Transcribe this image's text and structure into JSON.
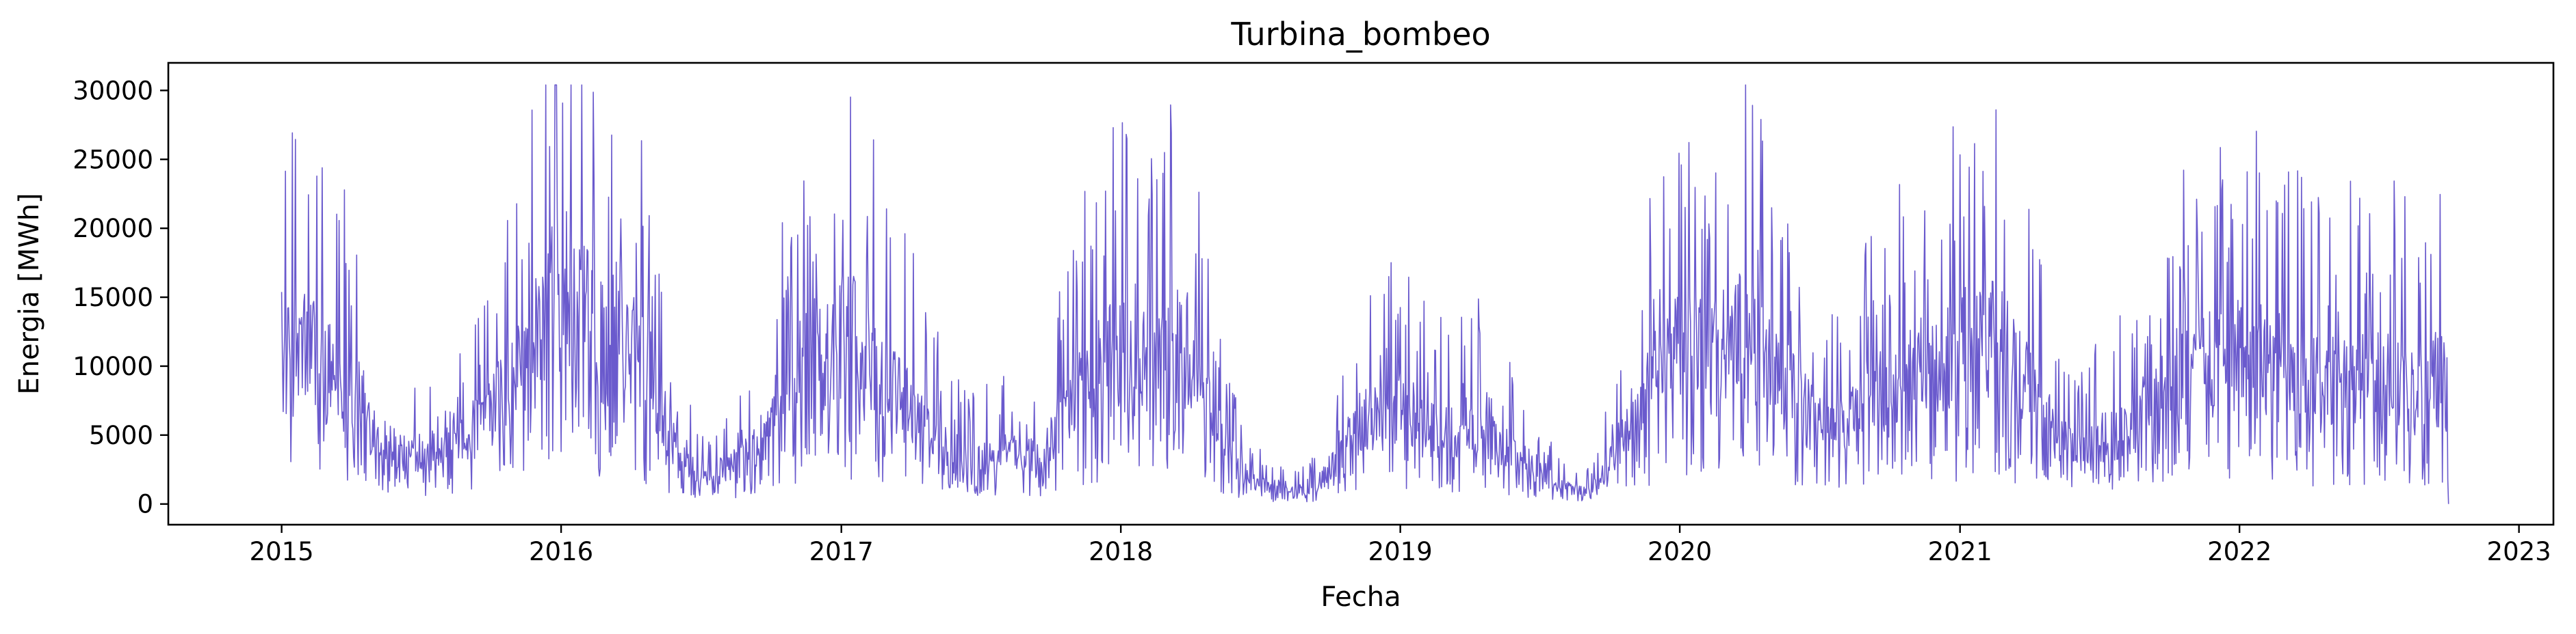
{
  "chart_data": {
    "type": "line",
    "title": "Turbina_bombeo",
    "xlabel": "Fecha",
    "ylabel": "Energia [MWh]",
    "xlim": [
      "2014-08-06",
      "2023-02-15"
    ],
    "ylim": [
      -1500,
      32000
    ],
    "x_ticks": [
      "2015",
      "2016",
      "2017",
      "2018",
      "2019",
      "2020",
      "2021",
      "2022",
      "2023"
    ],
    "y_ticks": [
      0,
      5000,
      10000,
      15000,
      20000,
      25000,
      30000
    ],
    "y_tick_labels": [
      "0",
      "5000",
      "10000",
      "15000",
      "20000",
      "25000",
      "30000"
    ],
    "grid": false,
    "line_color": "#6a5acd",
    "series": [
      {
        "interval": "approx. 15-day level of the daily series (start date, MWh)",
        "x": [
          "2015-01-01",
          "2015-01-16",
          "2015-02-01",
          "2015-02-16",
          "2015-03-01",
          "2015-03-16",
          "2015-04-01",
          "2015-04-16",
          "2015-05-01",
          "2015-05-16",
          "2015-06-01",
          "2015-06-16",
          "2015-07-01",
          "2015-07-16",
          "2015-08-01",
          "2015-08-16",
          "2015-09-01",
          "2015-09-16",
          "2015-10-01",
          "2015-10-16",
          "2015-11-01",
          "2015-11-16",
          "2015-12-01",
          "2015-12-16",
          "2016-01-01",
          "2016-01-16",
          "2016-02-01",
          "2016-02-16",
          "2016-03-01",
          "2016-03-16",
          "2016-04-01",
          "2016-04-16",
          "2016-05-01",
          "2016-05-16",
          "2016-06-01",
          "2016-06-16",
          "2016-07-01",
          "2016-07-16",
          "2016-08-01",
          "2016-08-16",
          "2016-09-01",
          "2016-09-16",
          "2016-10-01",
          "2016-10-16",
          "2016-11-01",
          "2016-11-16",
          "2016-12-01",
          "2016-12-16",
          "2017-01-01",
          "2017-01-16",
          "2017-02-01",
          "2017-02-16",
          "2017-03-01",
          "2017-03-16",
          "2017-04-01",
          "2017-04-16",
          "2017-05-01",
          "2017-05-16",
          "2017-06-01",
          "2017-06-16",
          "2017-07-01",
          "2017-07-16",
          "2017-08-01",
          "2017-08-16",
          "2017-09-01",
          "2017-09-16",
          "2017-10-01",
          "2017-10-16",
          "2017-11-01",
          "2017-11-16",
          "2017-12-01",
          "2017-12-16",
          "2018-01-01",
          "2018-01-16",
          "2018-02-01",
          "2018-02-16",
          "2018-03-01",
          "2018-03-16",
          "2018-04-01",
          "2018-04-16",
          "2018-05-01",
          "2018-05-16",
          "2018-06-01",
          "2018-06-16",
          "2018-07-01",
          "2018-07-16",
          "2018-08-01",
          "2018-08-16",
          "2018-09-01",
          "2018-09-16",
          "2018-10-01",
          "2018-10-16",
          "2018-11-01",
          "2018-11-16",
          "2018-12-01",
          "2018-12-16",
          "2019-01-01",
          "2019-01-16",
          "2019-02-01",
          "2019-02-16",
          "2019-03-01",
          "2019-03-16",
          "2019-04-01",
          "2019-04-16",
          "2019-05-01",
          "2019-05-16",
          "2019-06-01",
          "2019-06-16",
          "2019-07-01",
          "2019-07-16",
          "2019-08-01",
          "2019-08-16",
          "2019-09-01",
          "2019-09-16",
          "2019-10-01",
          "2019-10-16",
          "2019-11-01",
          "2019-11-16",
          "2019-12-01",
          "2019-12-16",
          "2020-01-01",
          "2020-01-16",
          "2020-02-01",
          "2020-02-16",
          "2020-03-01",
          "2020-03-16",
          "2020-04-01",
          "2020-04-16",
          "2020-05-01",
          "2020-05-16",
          "2020-06-01",
          "2020-06-16",
          "2020-07-01",
          "2020-07-16",
          "2020-08-01",
          "2020-08-16",
          "2020-09-01",
          "2020-09-16",
          "2020-10-01",
          "2020-10-16",
          "2020-11-01",
          "2020-11-16",
          "2020-12-01",
          "2020-12-16",
          "2021-01-01",
          "2021-01-16",
          "2021-02-01",
          "2021-02-16",
          "2021-03-01",
          "2021-03-16",
          "2021-04-01",
          "2021-04-16",
          "2021-05-01",
          "2021-05-16",
          "2021-06-01",
          "2021-06-16",
          "2021-07-01",
          "2021-07-16",
          "2021-08-01",
          "2021-08-16",
          "2021-09-01",
          "2021-09-16",
          "2021-10-01",
          "2021-10-16",
          "2021-11-01",
          "2021-11-16",
          "2021-12-01",
          "2021-12-16",
          "2022-01-01",
          "2022-01-16",
          "2022-02-01",
          "2022-02-16",
          "2022-03-01",
          "2022-03-16",
          "2022-04-01",
          "2022-04-16",
          "2022-05-01",
          "2022-05-16",
          "2022-06-01",
          "2022-06-16",
          "2022-07-01",
          "2022-07-16",
          "2022-08-01",
          "2022-08-16",
          "2022-09-01",
          "2022-09-16",
          "2022-10-01"
        ],
        "values": [
          9500,
          10500,
          11000,
          10500,
          9500,
          9000,
          8500,
          7000,
          5500,
          4500,
          4000,
          3500,
          4000,
          4000,
          5000,
          4500,
          5000,
          5500,
          6500,
          7500,
          8500,
          10500,
          11500,
          13500,
          15000,
          14500,
          13000,
          12000,
          11500,
          12500,
          12000,
          10500,
          8500,
          6000,
          4000,
          3000,
          2500,
          2000,
          2500,
          3000,
          3500,
          4500,
          6000,
          8000,
          9000,
          10000,
          10500,
          10500,
          11500,
          11500,
          10000,
          9500,
          8500,
          7500,
          7000,
          6500,
          5500,
          4500,
          3500,
          3000,
          3500,
          3000,
          3500,
          3500,
          3500,
          3000,
          4500,
          6000,
          7500,
          9000,
          9500,
          10000,
          10500,
          9500,
          10000,
          9500,
          10500,
          12000,
          10500,
          8000,
          6000,
          4000,
          3000,
          1800,
          1500,
          1200,
          1200,
          1000,
          1000,
          1500,
          2500,
          4000,
          5500,
          6500,
          6000,
          6500,
          7000,
          6500,
          5500,
          5000,
          5500,
          5000,
          5500,
          5500,
          4500,
          4000,
          3500,
          3000,
          2500,
          1800,
          1200,
          1000,
          1000,
          1500,
          3000,
          4500,
          6000,
          7500,
          9000,
          10000,
          11000,
          10500,
          11000,
          10500,
          11000,
          11500,
          12000,
          11000,
          9500,
          8500,
          7500,
          6500,
          5500,
          5000,
          5500,
          6000,
          7500,
          8000,
          8000,
          8500,
          9000,
          9500,
          9500,
          10000,
          11000,
          11500,
          12000,
          11000,
          10500,
          9500,
          8500,
          7000,
          5500,
          4500,
          4000,
          3500,
          4500,
          5000,
          5500,
          6000,
          6500,
          7500,
          8500,
          9000,
          9000,
          10000,
          10000,
          10500,
          10500,
          10000,
          10000,
          10000,
          9500,
          9000,
          8500,
          8500,
          9000,
          8500,
          9000,
          8500,
          9000,
          9000,
          8500,
          8000,
          8000,
          9000,
          7500
        ]
      }
    ]
  }
}
